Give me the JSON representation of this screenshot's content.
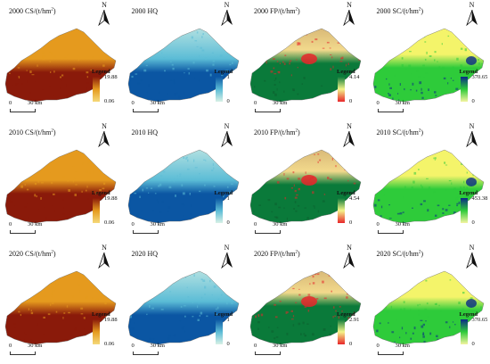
{
  "panels": [
    {
      "title_main": "2000 CS/(t/hm",
      "title_sup": "2",
      "title_end": ")",
      "legend_title": "Legend",
      "max": "19.88",
      "min": "0.06",
      "kind": "cs"
    },
    {
      "title_main": "2000 HQ",
      "title_sup": "",
      "title_end": "",
      "legend_title": "Legend",
      "max": "1",
      "min": "0",
      "kind": "hq"
    },
    {
      "title_main": "2000 FP/(t/hm",
      "title_sup": "2",
      "title_end": ")",
      "legend_title": "Legend",
      "max": "4.14",
      "min": "0",
      "kind": "fp"
    },
    {
      "title_main": "2000 SC/(t/hm",
      "title_sup": "2",
      "title_end": ")",
      "legend_title": "Legend",
      "max": "370.65",
      "min": "0",
      "kind": "sc"
    },
    {
      "title_main": "2010 CS/(t/hm",
      "title_sup": "2",
      "title_end": ")",
      "legend_title": "Legend",
      "max": "19.88",
      "min": "0.06",
      "kind": "cs"
    },
    {
      "title_main": "2010 HQ",
      "title_sup": "",
      "title_end": "",
      "legend_title": "Legend",
      "max": "1",
      "min": "0",
      "kind": "hq"
    },
    {
      "title_main": "2010 FP/(t/hm",
      "title_sup": "2",
      "title_end": ")",
      "legend_title": "Legend",
      "max": "4.54",
      "min": "0",
      "kind": "fp"
    },
    {
      "title_main": "2010 SC/(t/hm",
      "title_sup": "2",
      "title_end": ")",
      "legend_title": "Legend",
      "max": "453.38",
      "min": "0",
      "kind": "sc"
    },
    {
      "title_main": "2020 CS/(t/hm",
      "title_sup": "2",
      "title_end": ")",
      "legend_title": "Legend",
      "max": "19.88",
      "min": "0.06",
      "kind": "cs"
    },
    {
      "title_main": "2020 HQ",
      "title_sup": "",
      "title_end": "",
      "legend_title": "Legend",
      "max": "1",
      "min": "0",
      "kind": "hq"
    },
    {
      "title_main": "2020 FP/(t/hm",
      "title_sup": "2",
      "title_end": ")",
      "legend_title": "Legend",
      "max": "2.91",
      "min": "0",
      "kind": "fp"
    },
    {
      "title_main": "2020 SC/(t/hm",
      "title_sup": "2",
      "title_end": ")",
      "legend_title": "Legend",
      "max": "370.65",
      "min": "0",
      "kind": "sc"
    }
  ],
  "north_label": "N",
  "scale": {
    "zero": "0",
    "distance": "30 km"
  },
  "colors": {
    "cs": {
      "low": "#f5d97a",
      "mid": "#e59a1e",
      "high": "#8a1a0a"
    },
    "hq": {
      "low": "#d8f1e6",
      "mid": "#5bbcd6",
      "high": "#0b56a3"
    },
    "fp": {
      "low": "#e8262a",
      "mid": "#f2d98c",
      "high": "#0a7a3a"
    },
    "sc": {
      "low": "#f4f46a",
      "mid": "#2ecb3a",
      "high": "#0a2a86"
    }
  },
  "icons": {
    "north": "north-arrow-icon"
  }
}
